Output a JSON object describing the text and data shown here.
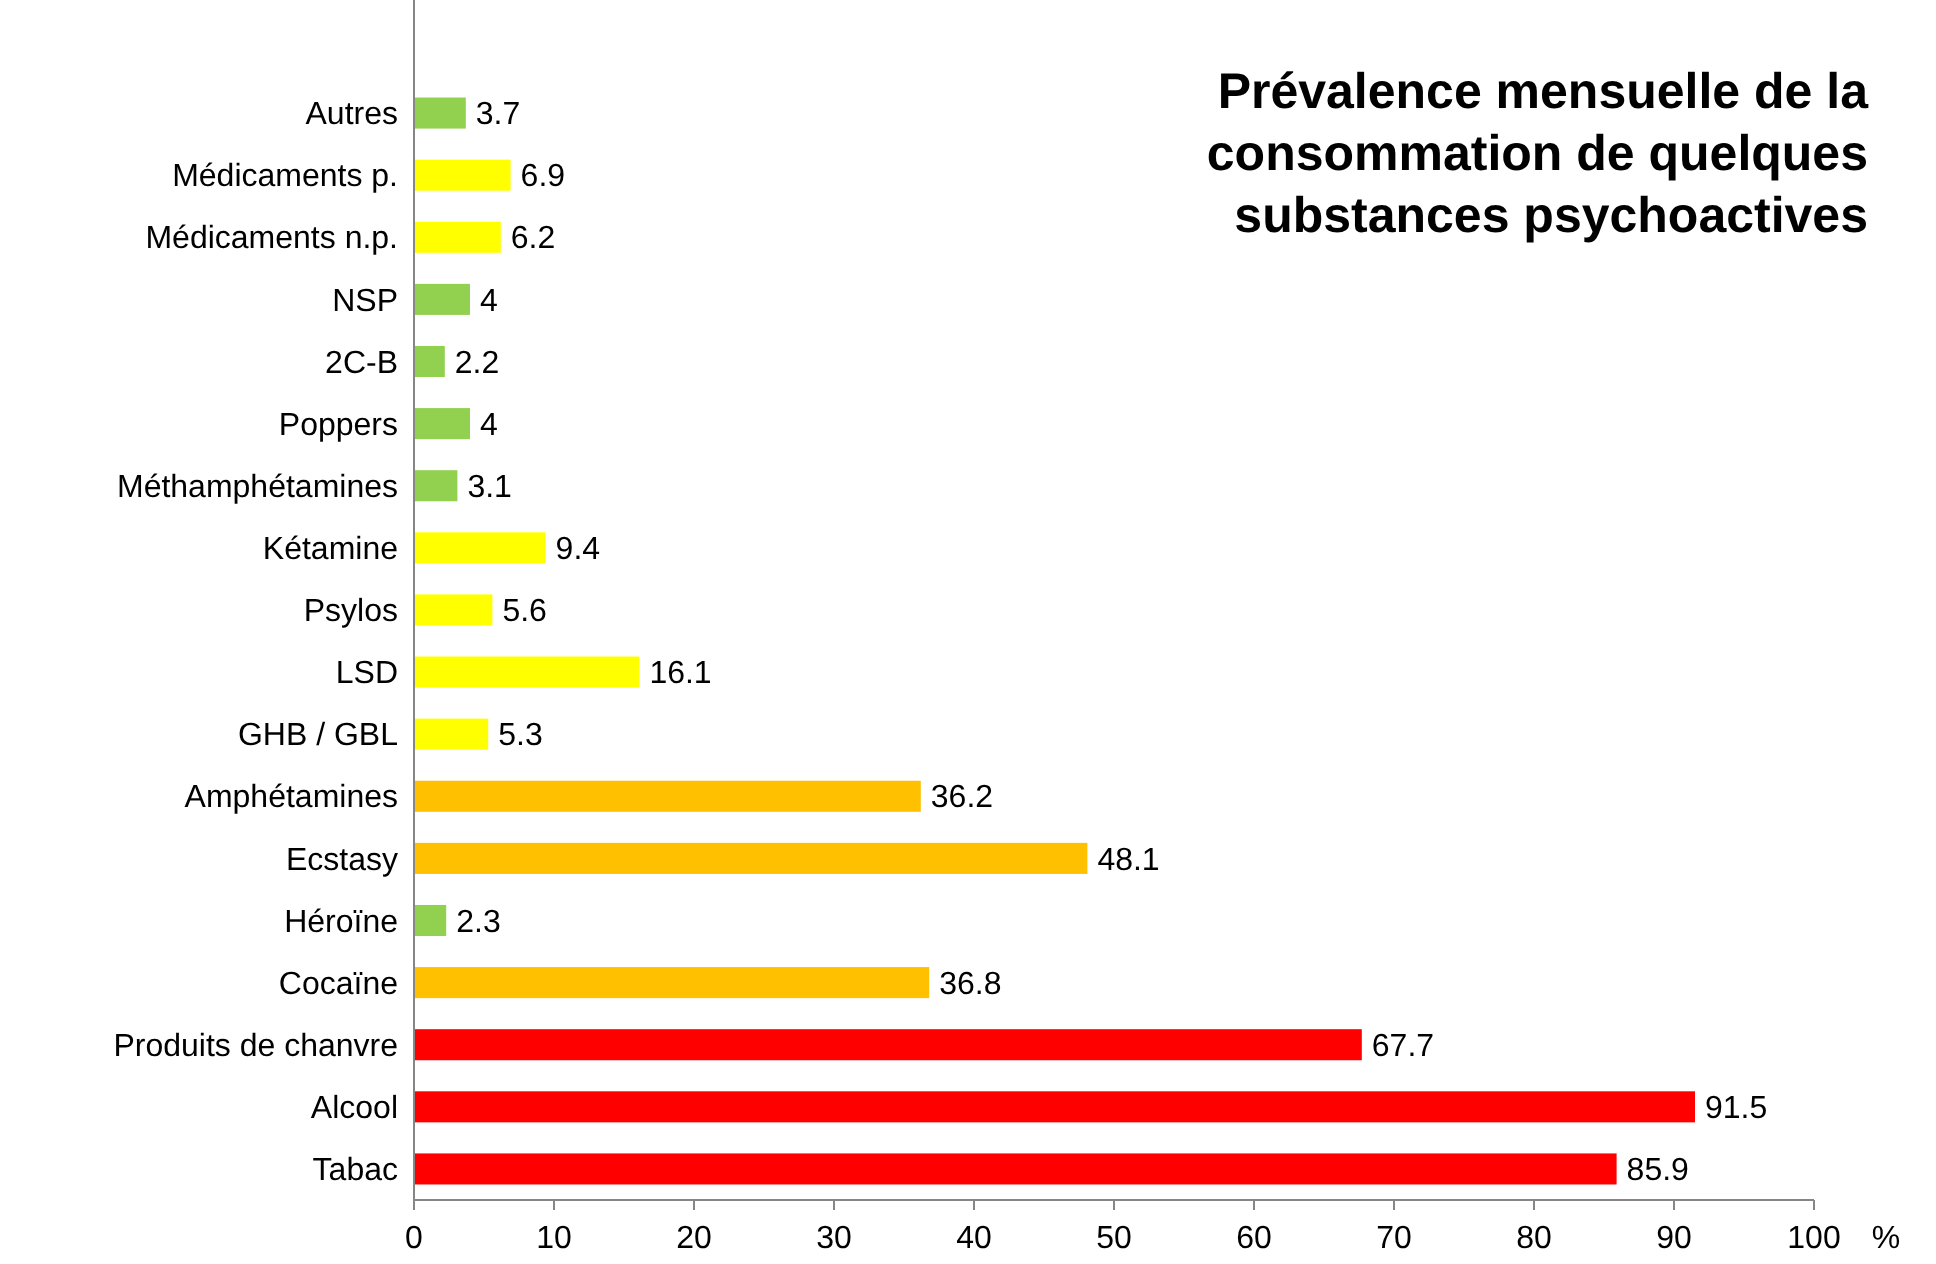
{
  "chart_data": {
    "type": "bar",
    "orientation": "horizontal",
    "title": "Prévalence mensuelle de la consommation de quelques substances psychoactives",
    "xlabel": "%",
    "categories": [
      "Autres",
      "Médicaments p.",
      "Médicaments n.p.",
      "NSP",
      "2C-B",
      "Poppers",
      "Méthamphétamines",
      "Kétamine",
      "Psylos",
      "LSD",
      "GHB / GBL",
      "Amphétamines",
      "Ecstasy",
      "Héroïne",
      "Cocaïne",
      "Produits de chanvre",
      "Alcool",
      "Tabac"
    ],
    "values": [
      3.7,
      6.9,
      6.2,
      4,
      2.2,
      4,
      3.1,
      9.4,
      5.6,
      16.1,
      5.3,
      36.2,
      48.1,
      2.3,
      36.8,
      67.7,
      91.5,
      85.9
    ],
    "colors": [
      "#92d050",
      "#ffff00",
      "#ffff00",
      "#92d050",
      "#92d050",
      "#92d050",
      "#92d050",
      "#ffff00",
      "#ffff00",
      "#ffff00",
      "#ffff00",
      "#ffc000",
      "#ffc000",
      "#92d050",
      "#ffc000",
      "#ff0000",
      "#ff0000",
      "#ff0000"
    ],
    "xlim": [
      0,
      100
    ],
    "xticks": [
      0,
      10,
      20,
      30,
      40,
      50,
      60,
      70,
      80,
      90,
      100
    ],
    "data_labels": true
  }
}
